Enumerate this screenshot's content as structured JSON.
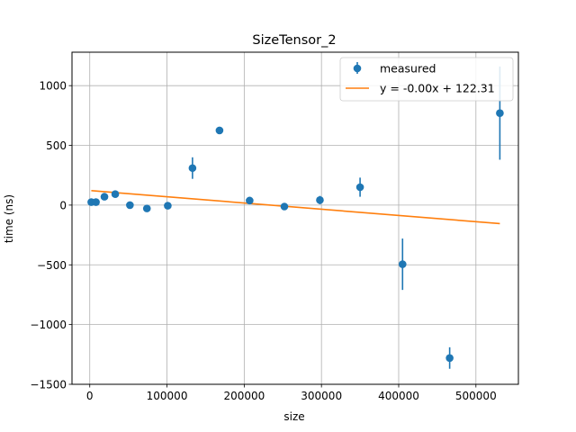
{
  "chart_data": {
    "type": "scatter",
    "title": "SizeTensor_2",
    "xlabel": "size",
    "ylabel": "time (ns)",
    "xlim": [
      -23000,
      555000
    ],
    "ylim": [
      -1500,
      1280
    ],
    "xticks": [
      0,
      100000,
      200000,
      300000,
      400000,
      500000
    ],
    "xtick_labels": [
      "0",
      "100000",
      "200000",
      "300000",
      "400000",
      "500000"
    ],
    "yticks": [
      -1500,
      -1000,
      -500,
      0,
      500,
      1000
    ],
    "ytick_labels": [
      "−1500",
      "−1000",
      "−500",
      "0",
      "500",
      "1000"
    ],
    "grid": true,
    "legend_position": "top-right",
    "colors": {
      "measured": "#1f77b4",
      "fit": "#ff7f0e",
      "grid": "#b0b0b0"
    },
    "series": [
      {
        "name": "measured",
        "kind": "errorbar",
        "points": [
          {
            "x": 2000,
            "y": 25,
            "err": 0
          },
          {
            "x": 8000,
            "y": 25,
            "err": 0
          },
          {
            "x": 19000,
            "y": 70,
            "err": 0
          },
          {
            "x": 33000,
            "y": 92,
            "err": 0
          },
          {
            "x": 52000,
            "y": 0,
            "err": 0
          },
          {
            "x": 74000,
            "y": -28,
            "err": 0
          },
          {
            "x": 101000,
            "y": -5,
            "err": 0
          },
          {
            "x": 133000,
            "y": 310,
            "err": 90
          },
          {
            "x": 168000,
            "y": 625,
            "err": 0
          },
          {
            "x": 207000,
            "y": 38,
            "err": 0
          },
          {
            "x": 252000,
            "y": -12,
            "err": 0
          },
          {
            "x": 298000,
            "y": 42,
            "err": 35
          },
          {
            "x": 350000,
            "y": 150,
            "err": 80
          },
          {
            "x": 405000,
            "y": -495,
            "err": 215
          },
          {
            "x": 466000,
            "y": -1280,
            "err": 90
          },
          {
            "x": 531000,
            "y": 770,
            "err": 390
          }
        ]
      },
      {
        "name": "y = -0.00x + 122.31",
        "kind": "line",
        "x": [
          2000,
          531000
        ],
        "y": [
          121,
          -155
        ]
      }
    ]
  }
}
